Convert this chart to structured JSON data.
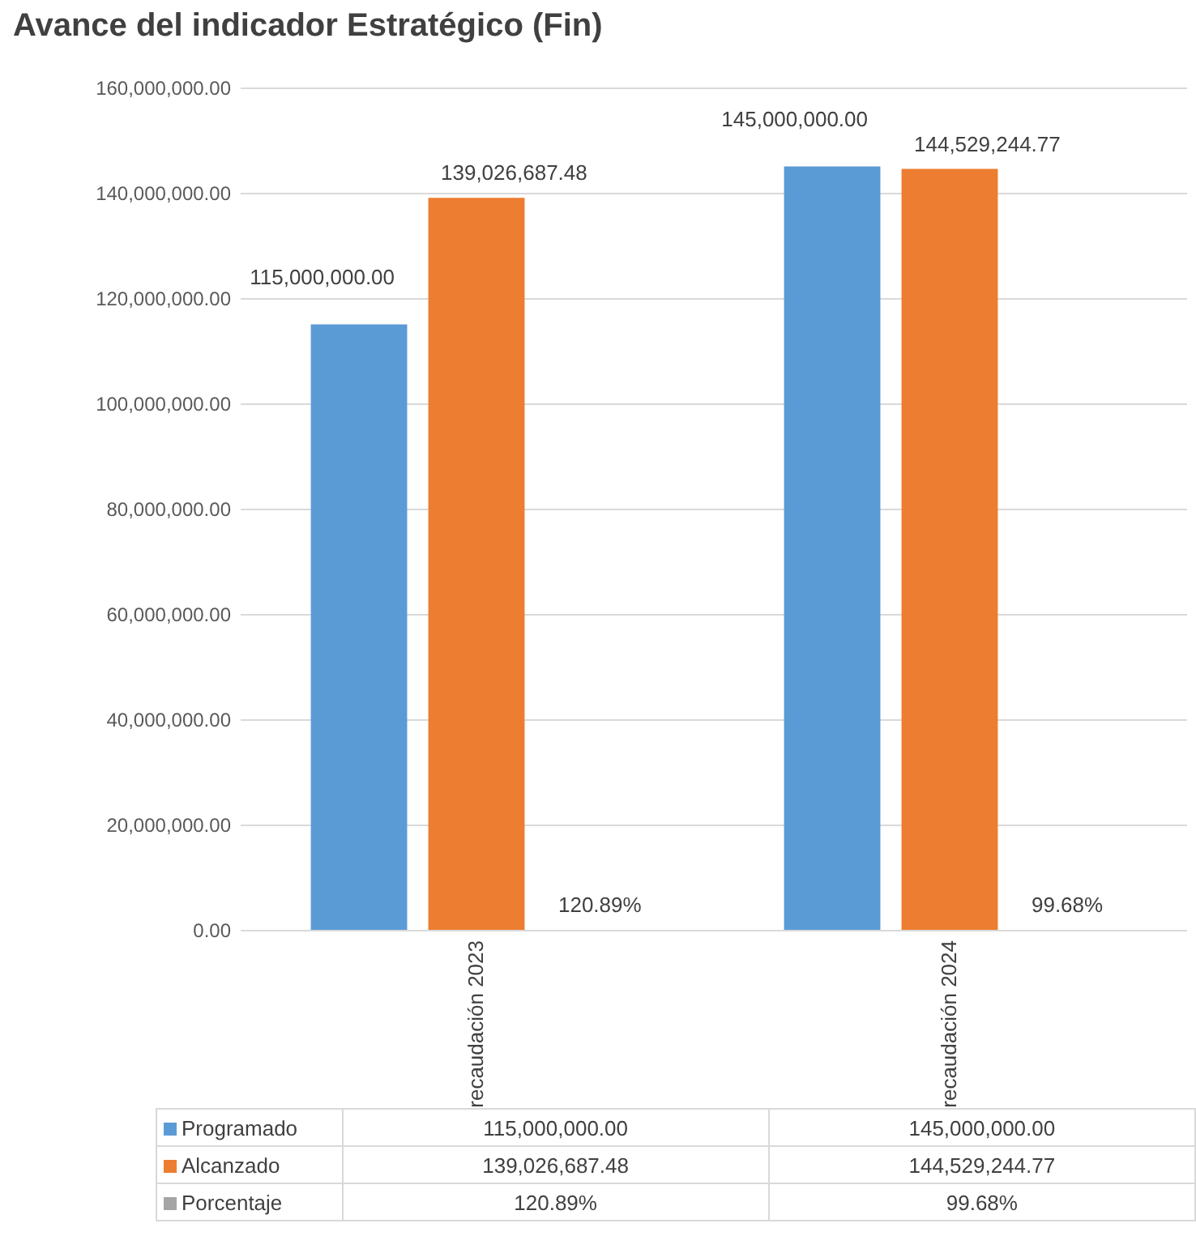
{
  "chart_data": {
    "type": "bar",
    "title": "Avance del indicador Estratégico (Fin)",
    "categories": [
      "recaudación 2023",
      "recaudación 2024"
    ],
    "series": [
      {
        "name": "Programado",
        "color": "#5b9bd5",
        "values": [
          115000000.0,
          145000000.0
        ],
        "value_labels": [
          "115,000,000.00",
          "145,000,000.00"
        ]
      },
      {
        "name": "Alcanzado",
        "color": "#ed7d31",
        "values": [
          139026687.48,
          144529244.77
        ],
        "value_labels": [
          "139,026,687.48",
          "144,529,244.77"
        ]
      },
      {
        "name": "Porcentaje",
        "color": "#a5a5a5",
        "values": [
          120.89,
          99.68
        ],
        "value_labels": [
          "120.89%",
          "99.68%"
        ]
      }
    ],
    "ylim": [
      0,
      160000000
    ],
    "yticks": [
      {
        "value": 0,
        "label": "0.00"
      },
      {
        "value": 20000000,
        "label": "20,000,000.00"
      },
      {
        "value": 40000000,
        "label": "40,000,000.00"
      },
      {
        "value": 60000000,
        "label": "60,000,000.00"
      },
      {
        "value": 80000000,
        "label": "80,000,000.00"
      },
      {
        "value": 100000000,
        "label": "100,000,000.00"
      },
      {
        "value": 120000000,
        "label": "120,000,000.00"
      },
      {
        "value": 140000000,
        "label": "140,000,000.00"
      },
      {
        "value": 160000000,
        "label": "160,000,000.00"
      }
    ],
    "grid": "y",
    "legend": "bottom"
  }
}
